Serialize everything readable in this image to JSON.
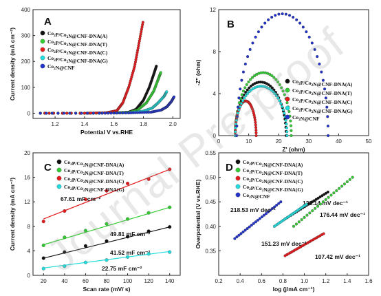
{
  "watermark": "Journal Pre-proof",
  "colors": {
    "black": "#111111",
    "green": "#33cc33",
    "red": "#e41a1c",
    "cyan": "#22dddd",
    "blue": "#2233cc",
    "axis": "#222222"
  },
  "chart_data": [
    {
      "panel": "A",
      "type": "line",
      "xlabel": "Potential V vs.RHE",
      "ylabel": "Current density (mA cm⁻²)",
      "xlim": [
        1.05,
        2.05
      ],
      "ylim": [
        -20,
        400
      ],
      "xticks": [
        1.2,
        1.4,
        1.6,
        1.8,
        2.0
      ],
      "yticks": [
        0,
        100,
        200,
        300,
        400
      ],
      "legend_position": "top-left",
      "series": [
        {
          "name": "Co2P/Co2N@CNF-DNA(A)",
          "color": "black",
          "x": [
            1.1,
            1.4,
            1.6,
            1.7,
            1.75,
            1.8,
            1.84,
            1.87,
            1.89
          ],
          "y": [
            0,
            0,
            1,
            4,
            15,
            50,
            100,
            150,
            185
          ]
        },
        {
          "name": "Co2P/Co2N@CNF-DNA(T)",
          "color": "green",
          "x": [
            1.1,
            1.4,
            1.6,
            1.7,
            1.76,
            1.82,
            1.87,
            1.9,
            1.92
          ],
          "y": [
            0,
            0,
            1,
            3,
            12,
            40,
            85,
            130,
            160
          ]
        },
        {
          "name": "Co2P/Co2N@CNF-DNA(C)",
          "color": "red",
          "x": [
            1.1,
            1.4,
            1.55,
            1.62,
            1.66,
            1.7,
            1.74,
            1.77,
            1.8
          ],
          "y": [
            0,
            0,
            2,
            10,
            40,
            100,
            180,
            270,
            360
          ]
        },
        {
          "name": "Co2P/Co2N@CNF-DNA(G)",
          "color": "cyan",
          "x": [
            1.1,
            1.5,
            1.7,
            1.8,
            1.86,
            1.9,
            1.94,
            1.96
          ],
          "y": [
            0,
            0,
            2,
            8,
            20,
            40,
            65,
            85
          ]
        },
        {
          "name": "Co2N@CNF",
          "color": "blue",
          "x": [
            1.1,
            1.5,
            1.7,
            1.85,
            1.92,
            1.96,
            1.99,
            2.01
          ],
          "y": [
            0,
            0,
            1,
            4,
            12,
            25,
            45,
            65
          ]
        }
      ]
    },
    {
      "panel": "B",
      "type": "scatter",
      "xlabel": "Z' (ohm)",
      "ylabel": "-Z'' (ohm)",
      "xlim": [
        0,
        50
      ],
      "ylim": [
        0,
        12
      ],
      "xticks": [
        0,
        10,
        20,
        30,
        40,
        50
      ],
      "yticks": [
        0,
        4,
        8,
        12
      ],
      "legend_position": "right",
      "series": [
        {
          "name": "Co2P/Co2N@CNF-DNA(A)",
          "color": "black",
          "x_start": 5.5,
          "x_end": 22.5,
          "peak": 5.1
        },
        {
          "name": "Co2P/Co2N@CNF-DNA(T)",
          "color": "green",
          "x_start": 5.5,
          "x_end": 24.2,
          "peak": 6.0
        },
        {
          "name": "Co2P/Co2N@CNF-DNA(C)",
          "color": "red",
          "x_start": 5.5,
          "x_end": 12.5,
          "peak": 3.3
        },
        {
          "name": "Co2P/Co2N@CNF-DNA(G)",
          "color": "cyan",
          "x_start": 5.5,
          "x_end": 22.8,
          "peak": 4.7
        },
        {
          "name": "Co2N@CNF",
          "color": "blue",
          "x_start": 6.0,
          "x_end": 36.5,
          "peak": 11.6
        }
      ]
    },
    {
      "panel": "C",
      "type": "scatter",
      "xlabel": "Scan rate (mV/ s)",
      "ylabel": "Current density (mA cm⁻²)",
      "xlim": [
        10,
        150
      ],
      "ylim": [
        0,
        20
      ],
      "xticks": [
        20,
        40,
        60,
        80,
        100,
        120,
        140
      ],
      "yticks": [
        0,
        4,
        8,
        12,
        16,
        20
      ],
      "legend_position": "top-left",
      "x": [
        20,
        40,
        60,
        80,
        100,
        120,
        140
      ],
      "series": [
        {
          "name": "Co2P/Co2N@CNF-DNA(A)",
          "color": "black",
          "y": [
            2.8,
            3.8,
            4.8,
            5.6,
            6.3,
            7.2,
            7.9
          ],
          "fit": [
            2.8,
            7.9
          ],
          "label": "41.52 mF cm⁻²"
        },
        {
          "name": "Co2P/Co2N@CNF-DNA(T)",
          "color": "green",
          "y": [
            4.9,
            6.2,
            7.3,
            8.4,
            9.2,
            10.2,
            11.1
          ],
          "fit": [
            5.0,
            11.1
          ],
          "label": "49.81 mF cm⁻²"
        },
        {
          "name": "Co2P/Co2N@CNF-DNA(C)",
          "color": "red",
          "y": [
            8.8,
            10.5,
            12.4,
            13.8,
            15.0,
            15.7,
            17.3
          ],
          "fit": [
            9.2,
            17.3
          ],
          "label": "67.61 mF cm⁻²"
        },
        {
          "name": "Co2P/Co2N@CNF-DNA(G)",
          "color": "cyan",
          "y": [
            1.1,
            1.5,
            2.1,
            2.5,
            3.0,
            3.5,
            3.8
          ],
          "fit": [
            1.2,
            3.9
          ],
          "label": "22.75 mF cm⁻²"
        }
      ]
    },
    {
      "panel": "D",
      "type": "scatter",
      "xlabel": "log (j/mA cm⁻¹)",
      "ylabel": "Overpotential (V vs.RHE)",
      "xlim": [
        0.2,
        1.6
      ],
      "ylim": [
        0.3,
        0.55
      ],
      "xticks": [
        0.2,
        0.4,
        0.6,
        0.8,
        1.0,
        1.2,
        1.4,
        1.6
      ],
      "yticks": [
        0.35,
        0.4,
        0.45,
        0.5,
        0.55
      ],
      "legend_position": "top-left",
      "series": [
        {
          "name": "Co2P/Co2N@CNF-DNA(A)",
          "color": "black",
          "x_range": [
            0.82,
            1.22
          ],
          "y_range": [
            0.415,
            0.47
          ],
          "label": "129.14 mV dec⁻¹"
        },
        {
          "name": "Co2P/Co2N@CNF-DNA(T)",
          "color": "green",
          "x_range": [
            0.9,
            1.45
          ],
          "y_range": [
            0.4,
            0.5
          ],
          "label": "176.44 mV dec⁻¹"
        },
        {
          "name": "Co2P/Co2N@CNF-DNA(C)",
          "color": "red",
          "x_range": [
            0.82,
            1.18
          ],
          "y_range": [
            0.34,
            0.385
          ],
          "label": "107.42 mV dec⁻¹"
        },
        {
          "name": "Co2P/Co2N@CNF-DNA(G)",
          "color": "cyan",
          "x_range": [
            0.72,
            1.02
          ],
          "y_range": [
            0.4,
            0.445
          ],
          "label": "151.23 mV dec⁻¹"
        },
        {
          "name": "Co2N@CNF",
          "color": "blue",
          "x_range": [
            0.35,
            0.78
          ],
          "y_range": [
            0.375,
            0.45
          ],
          "label": "218.53 mV dec⁻¹"
        }
      ]
    }
  ]
}
